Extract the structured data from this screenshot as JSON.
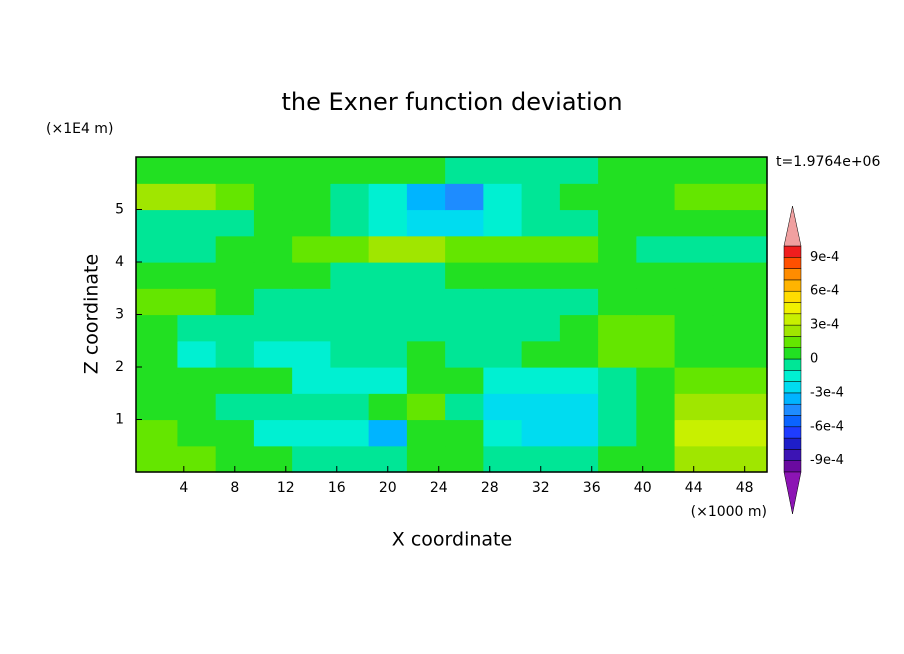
{
  "chart_data": {
    "type": "contour",
    "title": "the Exner function deviation",
    "x_label": "X coordinate",
    "y_label": "Z coordinate",
    "x_unit_label": "(×1000 m)",
    "y_unit_label": "(×1E4 m)",
    "annotation": "t=1.9764e+06",
    "xlim": [
      0.25,
      49.75
    ],
    "ylim": [
      0,
      6
    ],
    "xticks": [
      4,
      8,
      12,
      16,
      20,
      24,
      28,
      32,
      36,
      40,
      44,
      48
    ],
    "yticks": [
      1,
      2,
      3,
      4,
      5
    ],
    "x": [
      2,
      5,
      8,
      11,
      14,
      17,
      20,
      23,
      26,
      29,
      32,
      35,
      38,
      41,
      44,
      47
    ],
    "y": [
      0.25,
      0.75,
      1.25,
      1.75,
      2.25,
      2.75,
      3.25,
      3.75,
      4.25,
      4.75,
      5.25,
      5.75
    ],
    "z": [
      [
        0.00015,
        0.00015,
        5e-05,
        5e-05,
        -5e-05,
        -5e-05,
        -5e-05,
        5e-05,
        5e-05,
        -5e-05,
        -5e-05,
        -5e-05,
        5e-05,
        5e-05,
        0.00025,
        0.00025
      ],
      [
        0.00015,
        5e-05,
        5e-05,
        -0.00015,
        -0.00015,
        -0.00015,
        -0.00035,
        5e-05,
        5e-05,
        -0.00015,
        -0.00025,
        -0.00025,
        -5e-05,
        5e-05,
        0.00035,
        0.00035
      ],
      [
        5e-05,
        5e-05,
        -5e-05,
        -5e-05,
        -5e-05,
        -5e-05,
        5e-05,
        0.00015,
        -5e-05,
        -0.00025,
        -0.00025,
        -0.00025,
        -5e-05,
        5e-05,
        0.00025,
        0.00025
      ],
      [
        5e-05,
        5e-05,
        5e-05,
        5e-05,
        -0.00015,
        -0.00015,
        -0.00015,
        5e-05,
        5e-05,
        -0.00015,
        -0.00015,
        -0.00015,
        -5e-05,
        5e-05,
        0.00015,
        0.00015
      ],
      [
        5e-05,
        -0.00015,
        -5e-05,
        -0.00015,
        -0.00015,
        -5e-05,
        -5e-05,
        5e-05,
        -5e-05,
        -5e-05,
        5e-05,
        5e-05,
        0.00015,
        0.00015,
        5e-05,
        5e-05
      ],
      [
        5e-05,
        -5e-05,
        -5e-05,
        -5e-05,
        -5e-05,
        -5e-05,
        -5e-05,
        -5e-05,
        -5e-05,
        -5e-05,
        -5e-05,
        5e-05,
        0.00015,
        0.00015,
        5e-05,
        5e-05
      ],
      [
        0.00015,
        0.00015,
        5e-05,
        -5e-05,
        -5e-05,
        -5e-05,
        -5e-05,
        -5e-05,
        -5e-05,
        -5e-05,
        -5e-05,
        -5e-05,
        5e-05,
        5e-05,
        5e-05,
        5e-05
      ],
      [
        5e-05,
        5e-05,
        5e-05,
        5e-05,
        5e-05,
        -5e-05,
        -5e-05,
        -5e-05,
        5e-05,
        5e-05,
        5e-05,
        5e-05,
        5e-05,
        5e-05,
        5e-05,
        5e-05
      ],
      [
        -5e-05,
        -5e-05,
        5e-05,
        5e-05,
        0.00015,
        0.00015,
        0.00025,
        0.00025,
        0.00015,
        0.00015,
        0.00015,
        0.00015,
        5e-05,
        -5e-05,
        -5e-05,
        -5e-05
      ],
      [
        -5e-05,
        -5e-05,
        -5e-05,
        5e-05,
        5e-05,
        -5e-05,
        -0.00015,
        -0.00025,
        -0.00025,
        -0.00015,
        -5e-05,
        -5e-05,
        5e-05,
        5e-05,
        5e-05,
        5e-05
      ],
      [
        0.00025,
        0.00025,
        0.00015,
        5e-05,
        5e-05,
        -5e-05,
        -0.00015,
        -0.00035,
        -0.00045,
        -0.00015,
        -5e-05,
        5e-05,
        5e-05,
        5e-05,
        0.00015,
        0.00015
      ],
      [
        5e-05,
        5e-05,
        5e-05,
        5e-05,
        5e-05,
        5e-05,
        5e-05,
        5e-05,
        -5e-05,
        -5e-05,
        -5e-05,
        -5e-05,
        5e-05,
        5e-05,
        5e-05,
        5e-05
      ]
    ],
    "levels": [
      -0.001,
      -0.0009,
      -0.0008,
      -0.0007,
      -0.0006,
      -0.0005,
      -0.0004,
      -0.0003,
      -0.0002,
      -0.0001,
      0,
      0.0001,
      0.0002,
      0.0003,
      0.0004,
      0.0005,
      0.0006,
      0.0007,
      0.0008,
      0.0009,
      0.001
    ],
    "colors": [
      "#6a0aa0",
      "#3c14b4",
      "#1e1ec8",
      "#1e3cff",
      "#0a64ff",
      "#1e8cff",
      "#00b4ff",
      "#00dcf0",
      "#00f0d2",
      "#00e696",
      "#22e022",
      "#64e600",
      "#a0e600",
      "#c8f000",
      "#f0f000",
      "#ffdc00",
      "#ffb400",
      "#ff8c00",
      "#ff5000",
      "#f01e1e"
    ],
    "color_below": "#8c14b4",
    "color_above": "#f0a0a0",
    "colorbar_ticks": [
      {
        "value": 0.0009,
        "label": "9e-4"
      },
      {
        "value": 0.0006,
        "label": "6e-4"
      },
      {
        "value": 0.0003,
        "label": "3e-4"
      },
      0,
      {
        "value": -0.0003,
        "label": "-3e-4"
      },
      {
        "value": -0.0006,
        "label": "-6e-4"
      },
      {
        "value": -0.0009,
        "label": "-9e-4"
      }
    ]
  }
}
